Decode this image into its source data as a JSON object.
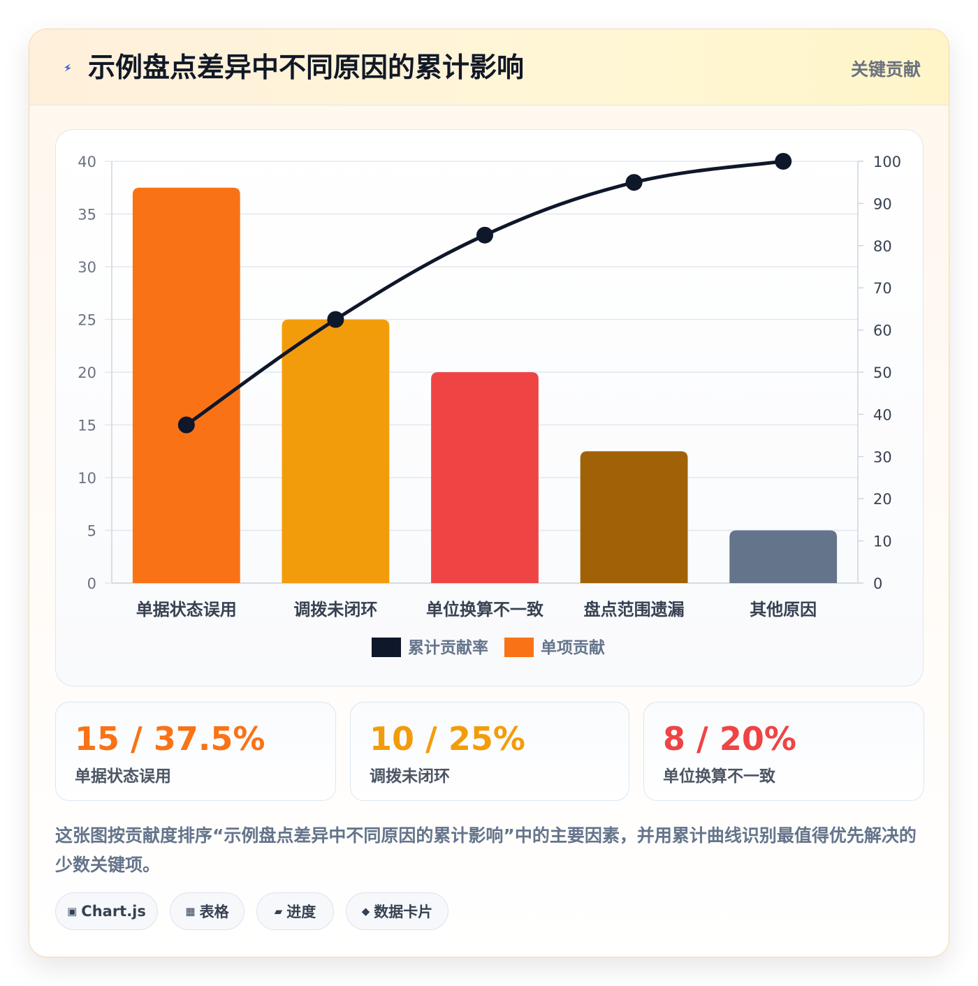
{
  "header": {
    "title": "示例盘点差异中不同原因的累计影响",
    "badge": "关键贡献",
    "icon": "lightning-icon",
    "icon_color": "#3b5bdb"
  },
  "chart_data": {
    "type": "bar",
    "categories": [
      "单据状态误用",
      "调拨未闭环",
      "单位换算不一致",
      "盘点范围遗漏",
      "其他原因"
    ],
    "series": [
      {
        "name": "单项贡献",
        "type": "bar",
        "axis": "left",
        "values": [
          37.5,
          25,
          20,
          12.5,
          5
        ],
        "colors": [
          "#f97316",
          "#f39c0b",
          "#ef4444",
          "#a16207",
          "#64748b"
        ]
      },
      {
        "name": "累计贡献率",
        "type": "line",
        "axis": "right",
        "values": [
          37.5,
          62.5,
          82.5,
          95,
          100
        ],
        "color": "#0f172a"
      }
    ],
    "y_left": {
      "min": 0,
      "max": 40,
      "ticks": [
        0,
        5,
        10,
        15,
        20,
        25,
        30,
        35,
        40
      ]
    },
    "y_right": {
      "min": 0,
      "max": 100,
      "ticks": [
        0,
        10,
        20,
        30,
        40,
        50,
        60,
        70,
        80,
        90,
        100
      ]
    },
    "legend": {
      "placement": "bottom",
      "items": [
        {
          "label": "累计贡献率",
          "color": "#0f172a"
        },
        {
          "label": "单项贡献",
          "color": "#f97316"
        }
      ]
    },
    "grid": true
  },
  "stats": [
    {
      "value": "15 / 37.5%",
      "label": "单据状态误用",
      "color": "#f97316"
    },
    {
      "value": "10 / 25%",
      "label": "调拨未闭环",
      "color": "#f39c0b"
    },
    {
      "value": "8 / 20%",
      "label": "单位换算不一致",
      "color": "#ef4444"
    }
  ],
  "description": "这张图按贡献度排序“示例盘点差异中不同原因的累计影响”中的主要因素，并用累计曲线识别最值得优先解决的少数关键项。",
  "tags": [
    {
      "icon_name": "chart-icon",
      "icon": "▣",
      "label": "Chart.js"
    },
    {
      "icon_name": "table-icon",
      "icon": "▦",
      "label": "表格"
    },
    {
      "icon_name": "progress-icon",
      "icon": "▰",
      "label": "进度"
    },
    {
      "icon_name": "card-icon",
      "icon": "◆",
      "label": "数据卡片"
    }
  ]
}
